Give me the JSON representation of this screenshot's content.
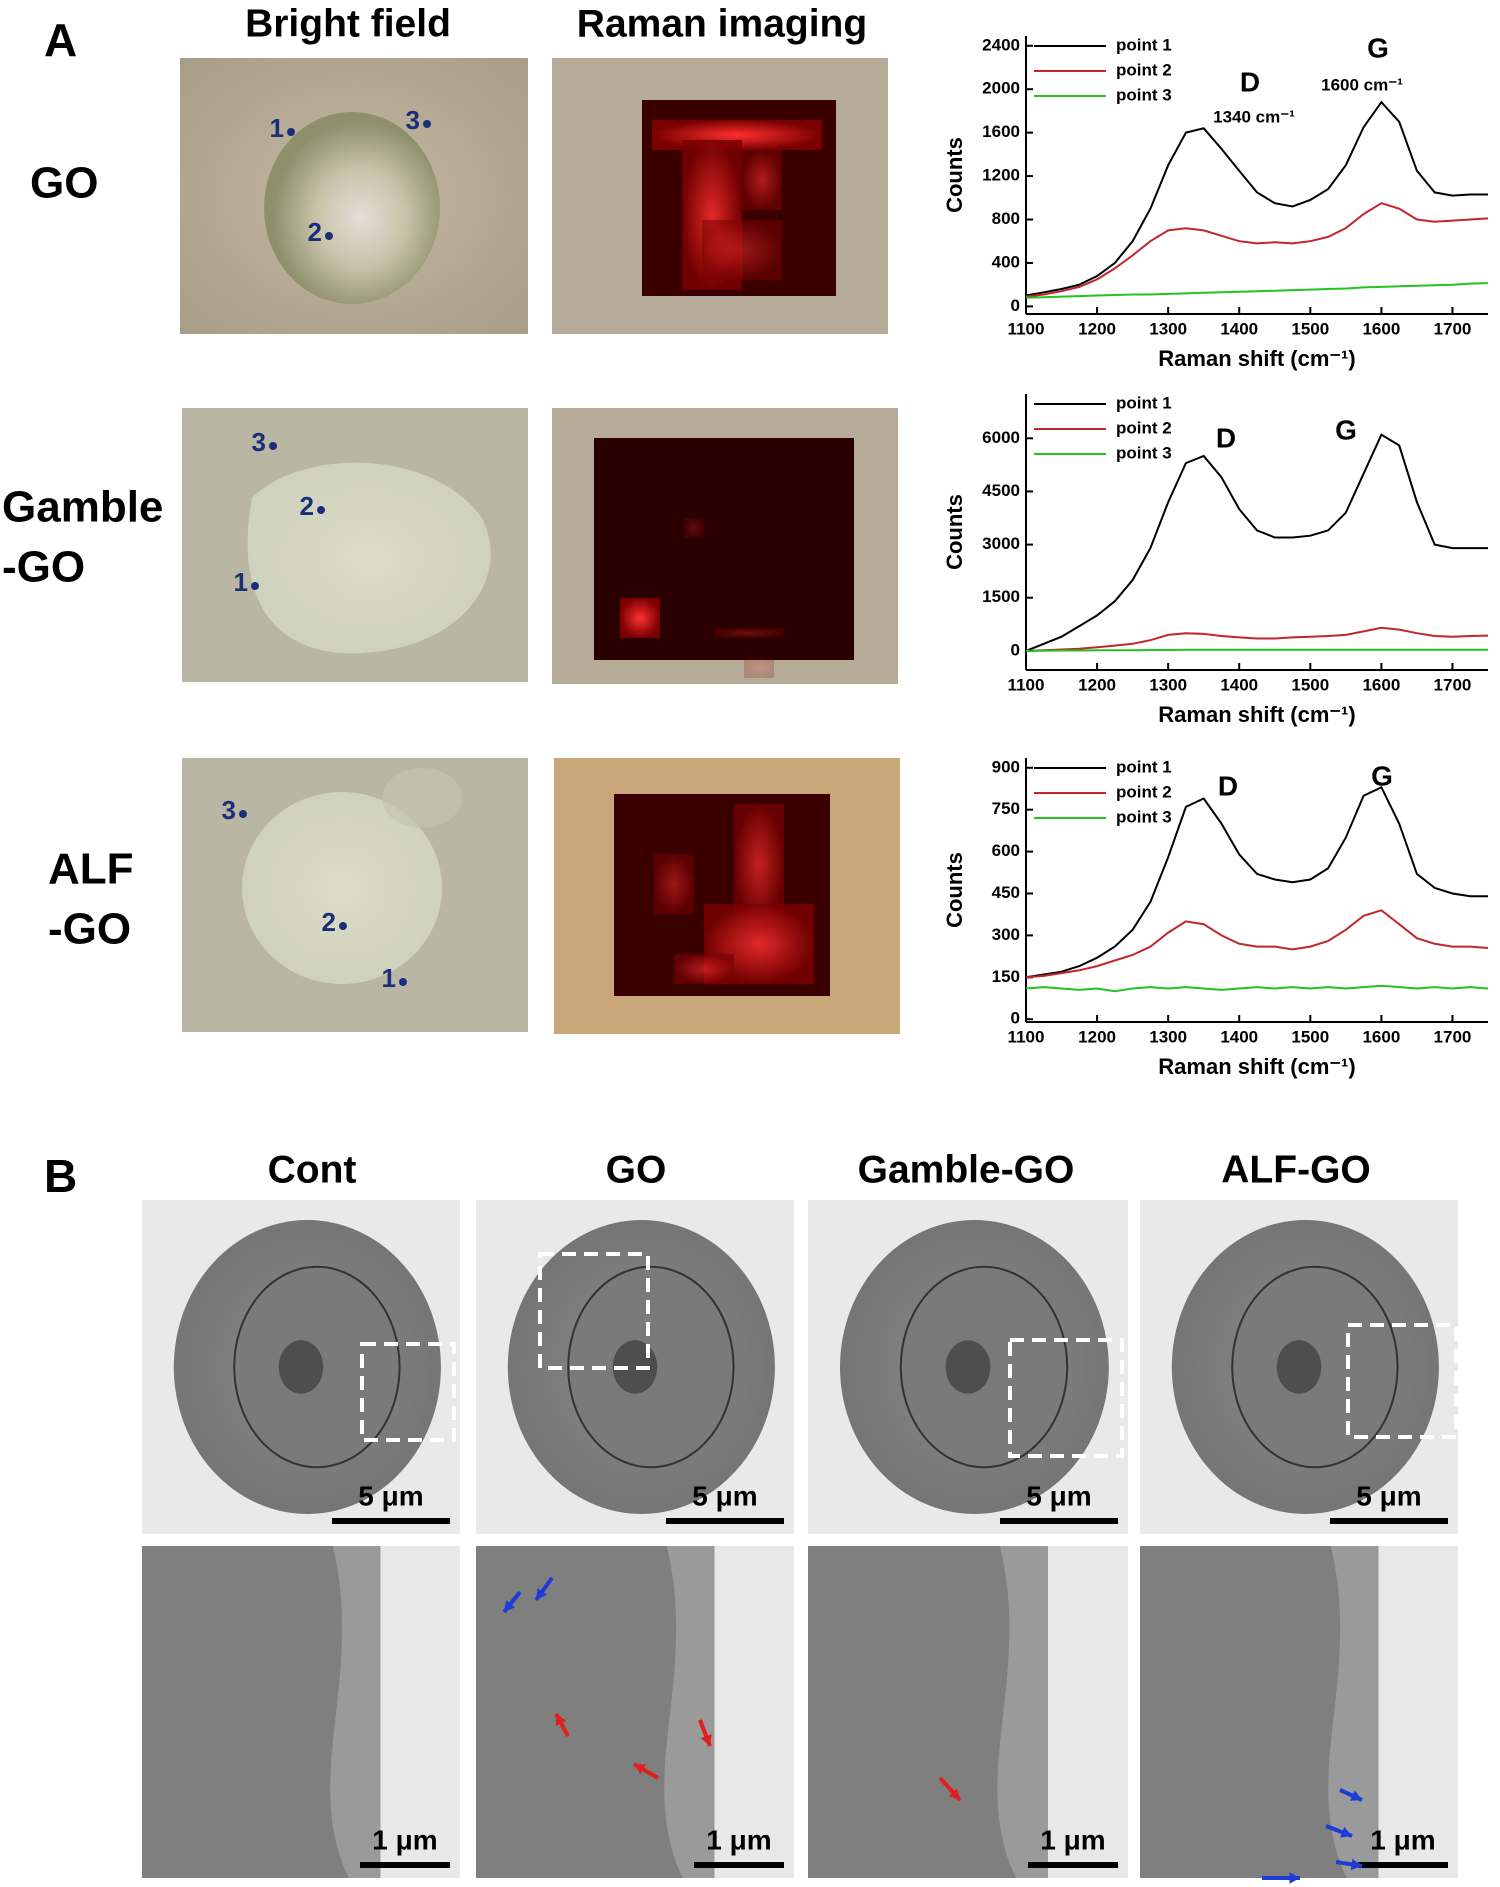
{
  "panel_a": {
    "label": "A",
    "columns": [
      "Bright field",
      "Raman imaging"
    ],
    "rows": [
      {
        "label": [
          "GO"
        ],
        "points": [
          "1",
          "2",
          "3"
        ]
      },
      {
        "label": [
          "Gamble",
          "-GO"
        ],
        "points": [
          "1",
          "2",
          "3"
        ]
      },
      {
        "label": [
          "ALF",
          "-GO"
        ],
        "points": [
          "1",
          "2",
          "3"
        ]
      }
    ]
  },
  "panel_b": {
    "label": "B",
    "columns": [
      "Cont",
      "GO",
      "Gamble-GO",
      "ALF-GO"
    ],
    "scale_bars": [
      "5 μm",
      "1 μm"
    ]
  },
  "chart_data": [
    {
      "type": "line",
      "xlabel": "Raman shift (cm⁻¹)",
      "ylabel": "Counts",
      "legend": "upper left",
      "annotations": [
        "D",
        "1340 cm⁻¹",
        "G",
        "1600 cm⁻¹"
      ],
      "x": [
        1100,
        1125,
        1150,
        1175,
        1200,
        1225,
        1250,
        1275,
        1300,
        1325,
        1350,
        1375,
        1400,
        1425,
        1450,
        1475,
        1500,
        1525,
        1550,
        1575,
        1600,
        1625,
        1650,
        1675,
        1700,
        1725,
        1750
      ],
      "series": [
        {
          "name": "point 1",
          "color": "#000000",
          "values": [
            100,
            130,
            160,
            200,
            280,
            400,
            600,
            900,
            1300,
            1600,
            1640,
            1450,
            1250,
            1050,
            950,
            920,
            980,
            1080,
            1300,
            1650,
            1880,
            1700,
            1250,
            1050,
            1020,
            1030,
            1030
          ]
        },
        {
          "name": "point 2",
          "color": "#c0272d",
          "values": [
            90,
            110,
            140,
            180,
            250,
            350,
            470,
            600,
            700,
            720,
            700,
            650,
            600,
            580,
            590,
            580,
            600,
            640,
            720,
            850,
            950,
            900,
            800,
            780,
            790,
            800,
            810
          ]
        },
        {
          "name": "point 3",
          "color": "#22c322",
          "values": [
            80,
            85,
            90,
            95,
            100,
            105,
            110,
            110,
            115,
            120,
            125,
            130,
            135,
            140,
            145,
            150,
            155,
            160,
            165,
            175,
            180,
            185,
            190,
            195,
            200,
            210,
            215
          ]
        }
      ],
      "xlim": [
        1100,
        1750
      ],
      "ylim": [
        -70,
        2490
      ],
      "xticks": [
        1100,
        1200,
        1300,
        1400,
        1500,
        1600,
        1700
      ],
      "yticks": [
        0,
        400,
        800,
        1200,
        1600,
        2000,
        2400
      ]
    },
    {
      "type": "line",
      "xlabel": "Raman shift (cm⁻¹)",
      "ylabel": "Counts",
      "legend": "upper left",
      "annotations": [
        "D",
        "G"
      ],
      "x": [
        1100,
        1125,
        1150,
        1175,
        1200,
        1225,
        1250,
        1275,
        1300,
        1325,
        1350,
        1375,
        1400,
        1425,
        1450,
        1475,
        1500,
        1525,
        1550,
        1575,
        1600,
        1625,
        1650,
        1675,
        1700,
        1725,
        1750
      ],
      "series": [
        {
          "name": "point 1",
          "color": "#000000",
          "values": [
            0,
            200,
            400,
            700,
            1000,
            1400,
            2000,
            2900,
            4200,
            5300,
            5500,
            4900,
            4000,
            3400,
            3200,
            3200,
            3250,
            3400,
            3900,
            5000,
            6100,
            5800,
            4200,
            3000,
            2900,
            2900,
            2900
          ]
        },
        {
          "name": "point 2",
          "color": "#c0272d",
          "values": [
            0,
            20,
            40,
            60,
            100,
            150,
            200,
            300,
            450,
            500,
            480,
            420,
            380,
            350,
            350,
            380,
            400,
            420,
            450,
            550,
            650,
            600,
            500,
            420,
            400,
            420,
            430
          ]
        },
        {
          "name": "point 3",
          "color": "#22c322",
          "values": [
            0,
            5,
            10,
            10,
            15,
            20,
            20,
            25,
            25,
            30,
            30,
            30,
            30,
            30,
            30,
            30,
            30,
            30,
            30,
            30,
            30,
            30,
            30,
            30,
            30,
            30,
            30
          ]
        }
      ],
      "xlim": [
        1100,
        1750
      ],
      "ylim": [
        -540,
        7250
      ],
      "xticks": [
        1100,
        1200,
        1300,
        1400,
        1500,
        1600,
        1700
      ],
      "yticks": [
        0,
        1500,
        3000,
        4500,
        6000
      ]
    },
    {
      "type": "line",
      "xlabel": "Raman shift (cm⁻¹)",
      "ylabel": "Counts",
      "legend": "upper left",
      "annotations": [
        "D",
        "G"
      ],
      "x": [
        1100,
        1125,
        1150,
        1175,
        1200,
        1225,
        1250,
        1275,
        1300,
        1325,
        1350,
        1375,
        1400,
        1425,
        1450,
        1475,
        1500,
        1525,
        1550,
        1575,
        1600,
        1625,
        1650,
        1675,
        1700,
        1725,
        1750
      ],
      "series": [
        {
          "name": "point 1",
          "color": "#000000",
          "values": [
            150,
            160,
            170,
            190,
            220,
            260,
            320,
            420,
            580,
            760,
            790,
            700,
            590,
            520,
            500,
            490,
            500,
            540,
            650,
            800,
            830,
            700,
            520,
            470,
            450,
            440,
            440
          ]
        },
        {
          "name": "point 2",
          "color": "#c0272d",
          "values": [
            150,
            155,
            165,
            175,
            190,
            210,
            230,
            260,
            310,
            350,
            340,
            300,
            270,
            260,
            260,
            250,
            260,
            280,
            320,
            370,
            390,
            340,
            290,
            270,
            260,
            260,
            255
          ]
        },
        {
          "name": "point 3",
          "color": "#22c322",
          "values": [
            110,
            115,
            110,
            105,
            110,
            100,
            110,
            115,
            110,
            115,
            110,
            105,
            110,
            115,
            110,
            115,
            110,
            115,
            110,
            115,
            120,
            115,
            110,
            115,
            110,
            115,
            110
          ]
        }
      ],
      "xlim": [
        1100,
        1750
      ],
      "ylim": [
        -10,
        935
      ],
      "xticks": [
        1100,
        1200,
        1300,
        1400,
        1500,
        1600,
        1700
      ],
      "yticks": [
        0,
        150,
        300,
        450,
        600,
        750,
        900
      ]
    }
  ]
}
